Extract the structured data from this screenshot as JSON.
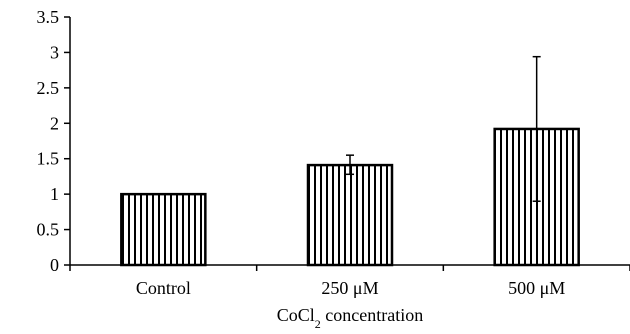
{
  "chart_data": {
    "type": "bar",
    "categories": [
      "Control",
      "250 μM",
      "500 μM"
    ],
    "values": [
      1.0,
      1.41,
      1.92
    ],
    "error_bars": [
      {
        "low": 1.0,
        "high": 1.0
      },
      {
        "low": 1.28,
        "high": 1.55
      },
      {
        "low": 0.9,
        "high": 2.94
      }
    ],
    "title": "",
    "xlabel": {
      "parts": [
        {
          "text": "CoCl"
        },
        {
          "text": "2",
          "subscript": true
        },
        {
          "text": " concentration"
        }
      ]
    },
    "ylabel": "",
    "ylim": [
      0,
      3.5
    ],
    "yticks": [
      "0",
      "0.5",
      "1",
      "1.5",
      "2",
      "2.5",
      "3",
      "3.5"
    ],
    "grid": false,
    "legend": "none",
    "bar_fill": "vertical-hatch",
    "colors": {
      "axis": "#000000",
      "bar_edge": "#000000",
      "hatch": "#000000",
      "background": "#ffffff"
    }
  }
}
